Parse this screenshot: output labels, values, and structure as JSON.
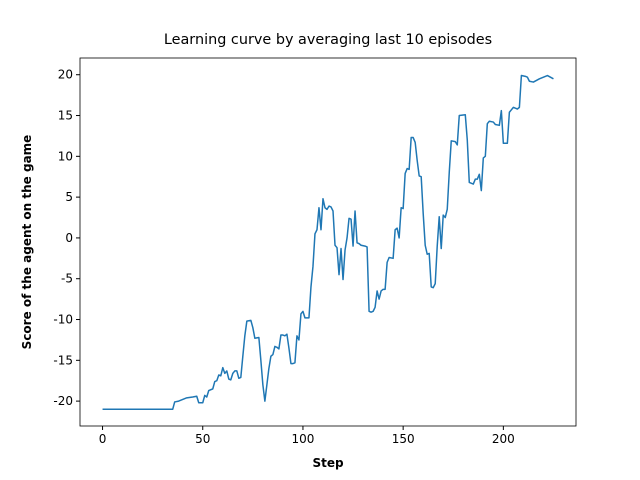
{
  "chart_data": {
    "type": "line",
    "title": "Learning curve by averaging last 10 episodes",
    "xlabel": "Step",
    "ylabel": "Score of the agent on the game",
    "xlim": [
      -11.25,
      236.25
    ],
    "ylim": [
      -23.05,
      22.05
    ],
    "xticks": [
      0,
      50,
      100,
      150,
      200
    ],
    "yticks": [
      -20,
      -15,
      -10,
      -5,
      0,
      5,
      10,
      15,
      20
    ],
    "series": [
      {
        "color": "#1f77b4",
        "x": [
          0,
          35,
          36,
          38,
          40,
          42,
          45,
          47,
          48,
          50,
          51,
          52,
          53,
          55,
          56,
          57,
          58,
          59,
          60,
          61,
          62,
          63,
          64,
          65,
          66,
          67,
          68,
          69,
          70,
          71,
          72,
          74,
          75,
          76,
          78,
          79,
          80,
          81,
          82,
          83,
          84,
          85,
          86,
          87,
          88,
          89,
          90,
          91,
          92,
          93,
          94,
          95,
          96,
          97,
          98,
          99,
          100,
          101,
          103,
          104,
          105,
          106,
          107,
          108,
          109,
          110,
          111,
          112,
          113,
          114,
          115,
          116,
          117,
          118,
          119,
          120,
          121,
          122,
          123,
          124,
          125,
          126,
          127,
          128,
          129,
          131,
          132,
          133,
          134,
          135,
          136,
          137,
          138,
          139,
          140,
          141,
          142,
          143,
          145,
          146,
          147,
          148,
          149,
          150,
          151,
          152,
          153,
          154,
          155,
          156,
          157,
          158,
          159,
          160,
          161,
          162,
          163,
          164,
          165,
          166,
          167,
          168,
          169,
          170,
          171,
          172,
          173,
          174,
          176,
          177,
          178,
          181,
          182,
          183,
          185,
          186,
          187,
          188,
          189,
          190,
          191,
          192,
          193,
          195,
          196,
          198,
          199,
          200,
          202,
          203,
          204,
          205,
          206,
          207,
          208,
          209,
          211,
          212,
          213,
          215,
          218,
          222,
          225
        ],
        "values": [
          -21,
          -21,
          -20.1,
          -20,
          -19.8,
          -19.6,
          -19.5,
          -19.4,
          -20.2,
          -20.2,
          -19.3,
          -19.5,
          -18.7,
          -18.5,
          -17.6,
          -17.5,
          -16.8,
          -16.9,
          -15.9,
          -16.6,
          -16.3,
          -17.3,
          -17.4,
          -16.6,
          -16.3,
          -16.3,
          -17.2,
          -17.1,
          -14.5,
          -12,
          -10.2,
          -10.1,
          -11,
          -12.3,
          -12.2,
          -15,
          -18,
          -20,
          -18,
          -16,
          -14.5,
          -14.3,
          -13.3,
          -13.4,
          -13.6,
          -11.9,
          -11.9,
          -12,
          -11.8,
          -13.5,
          -15.4,
          -15.4,
          -15.3,
          -12,
          -12.5,
          -9.3,
          -9,
          -9.8,
          -9.8,
          -6,
          -3.5,
          0.5,
          1,
          3.7,
          1,
          4.8,
          3.7,
          3.5,
          3.9,
          3.8,
          3.3,
          -0.9,
          -1.2,
          -4.5,
          -1.3,
          -5.1,
          -1.5,
          0,
          2.4,
          2.3,
          -1,
          3.3,
          -0.6,
          -0.7,
          -0.9,
          -1,
          -1.1,
          -9,
          -9.1,
          -9,
          -8.5,
          -6.5,
          -7.5,
          -6.5,
          -6.3,
          -6.3,
          -3,
          -2.4,
          -2.5,
          1,
          1.2,
          0,
          3.7,
          3.6,
          7.9,
          8.5,
          8.4,
          12.3,
          12.3,
          11.7,
          9.5,
          7.6,
          7.5,
          3,
          -0.9,
          -2,
          -1.9,
          -6,
          -6.1,
          -5.6,
          -1,
          2.6,
          -1.3,
          2.8,
          2.5,
          3.5,
          8,
          11.9,
          11.8,
          11.4,
          15,
          15.1,
          12,
          6.8,
          6.6,
          7.2,
          7.2,
          7.8,
          5.8,
          9.8,
          10,
          14,
          14.3,
          14.2,
          13.9,
          13.8,
          15.6,
          11.6,
          11.6,
          15.4,
          15.7,
          16,
          15.9,
          15.8,
          16,
          19.9,
          19.8,
          19.7,
          19.2,
          19.1,
          19.5,
          19.9,
          19.5
        ]
      }
    ]
  }
}
